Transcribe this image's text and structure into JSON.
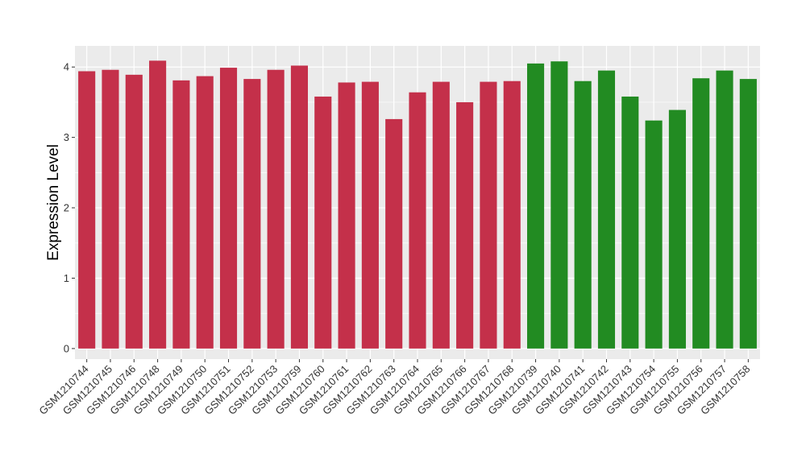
{
  "chart_data": {
    "type": "bar",
    "title": "",
    "xlabel": "",
    "ylabel": "Expression Level",
    "ylim": [
      -0.15,
      4.3
    ],
    "yticks": [
      0,
      1,
      2,
      3,
      4
    ],
    "grid": true,
    "legend": "none",
    "colors": {
      "group_a": "#c4304a",
      "group_b": "#228b22",
      "panel": "#ebebeb",
      "grid": "#ffffff"
    },
    "categories": [
      "GSM1210744",
      "GSM1210745",
      "GSM1210746",
      "GSM1210748",
      "GSM1210749",
      "GSM1210750",
      "GSM1210751",
      "GSM1210752",
      "GSM1210753",
      "GSM1210759",
      "GSM1210760",
      "GSM1210761",
      "GSM1210762",
      "GSM1210763",
      "GSM1210764",
      "GSM1210765",
      "GSM1210766",
      "GSM1210767",
      "GSM1210768",
      "GSM1210739",
      "GSM1210740",
      "GSM1210741",
      "GSM1210742",
      "GSM1210743",
      "GSM1210754",
      "GSM1210755",
      "GSM1210756",
      "GSM1210757",
      "GSM1210758"
    ],
    "values": [
      3.94,
      3.96,
      3.89,
      4.09,
      3.81,
      3.87,
      3.99,
      3.83,
      3.96,
      4.02,
      3.58,
      3.78,
      3.79,
      3.26,
      3.64,
      3.79,
      3.5,
      3.79,
      3.8,
      4.05,
      4.08,
      3.8,
      3.95,
      3.58,
      3.24,
      3.39,
      3.84,
      3.95,
      3.83
    ],
    "groups": [
      "a",
      "a",
      "a",
      "a",
      "a",
      "a",
      "a",
      "a",
      "a",
      "a",
      "a",
      "a",
      "a",
      "a",
      "a",
      "a",
      "a",
      "a",
      "a",
      "b",
      "b",
      "b",
      "b",
      "b",
      "b",
      "b",
      "b",
      "b",
      "b"
    ]
  }
}
